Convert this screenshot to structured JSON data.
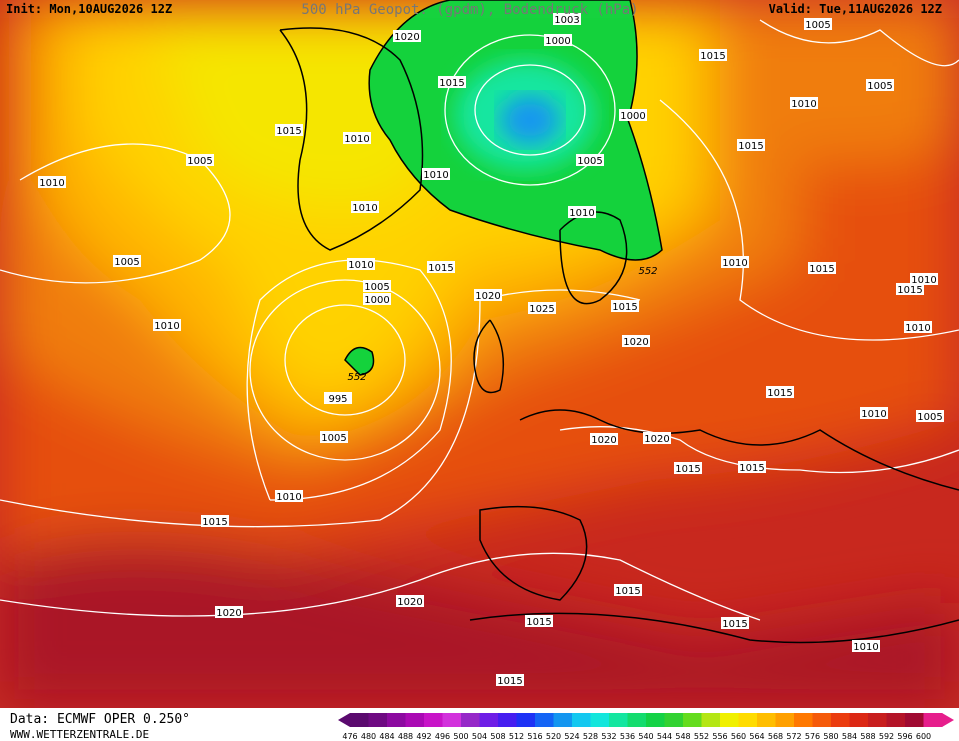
{
  "header": {
    "init": "Init: Mon,10AUG2026 12Z",
    "title": "500 hPa Geopot. (gpdm), Bodendruck (hPa)",
    "valid": "Valid: Tue,11AUG2026 12Z"
  },
  "footer": {
    "source": "Data: ECMWF OPER 0.250°",
    "website": "WWW.WETTERZENTRALE.DE"
  },
  "legend": {
    "levels": [
      476,
      480,
      484,
      488,
      492,
      496,
      500,
      504,
      508,
      512,
      516,
      520,
      524,
      528,
      532,
      536,
      540,
      544,
      548,
      552,
      556,
      560,
      564,
      568,
      572,
      576,
      580,
      584,
      588,
      592,
      596,
      600
    ],
    "colors": [
      "#5a0a6e",
      "#6e0a82",
      "#8c0aa0",
      "#aa0ab4",
      "#c814c8",
      "#d232dc",
      "#9628c8",
      "#6e1ee6",
      "#461ef0",
      "#1e32f5",
      "#1464f5",
      "#1496f0",
      "#14c8f0",
      "#14e6dc",
      "#14e6a0",
      "#14dc6e",
      "#14d246",
      "#32d232",
      "#64dc1e",
      "#b4e614",
      "#f0f000",
      "#ffdc00",
      "#ffbe00",
      "#ffa000",
      "#ff7800",
      "#f55a0a",
      "#eb3c0f",
      "#dc2814",
      "#c81e1e",
      "#b41428",
      "#a00a32",
      "#e61e8c"
    ]
  },
  "isobar_labels": [
    1020,
    1003,
    1000,
    1005,
    1015,
    1015,
    1005,
    1010,
    1015,
    1010,
    1000,
    1015,
    1005,
    1005,
    1010,
    1010,
    1010,
    1010,
    1005,
    1010,
    1015,
    552,
    1010,
    1015,
    1010,
    1015,
    1005,
    1000,
    1020,
    1025,
    1015,
    1010,
    1010,
    1020,
    552,
    995,
    1015,
    1010,
    1005,
    1005,
    1020,
    1020,
    1015,
    1015,
    1010,
    1015,
    1015,
    1020,
    1020,
    1015,
    1015,
    1010,
    1015
  ]
}
